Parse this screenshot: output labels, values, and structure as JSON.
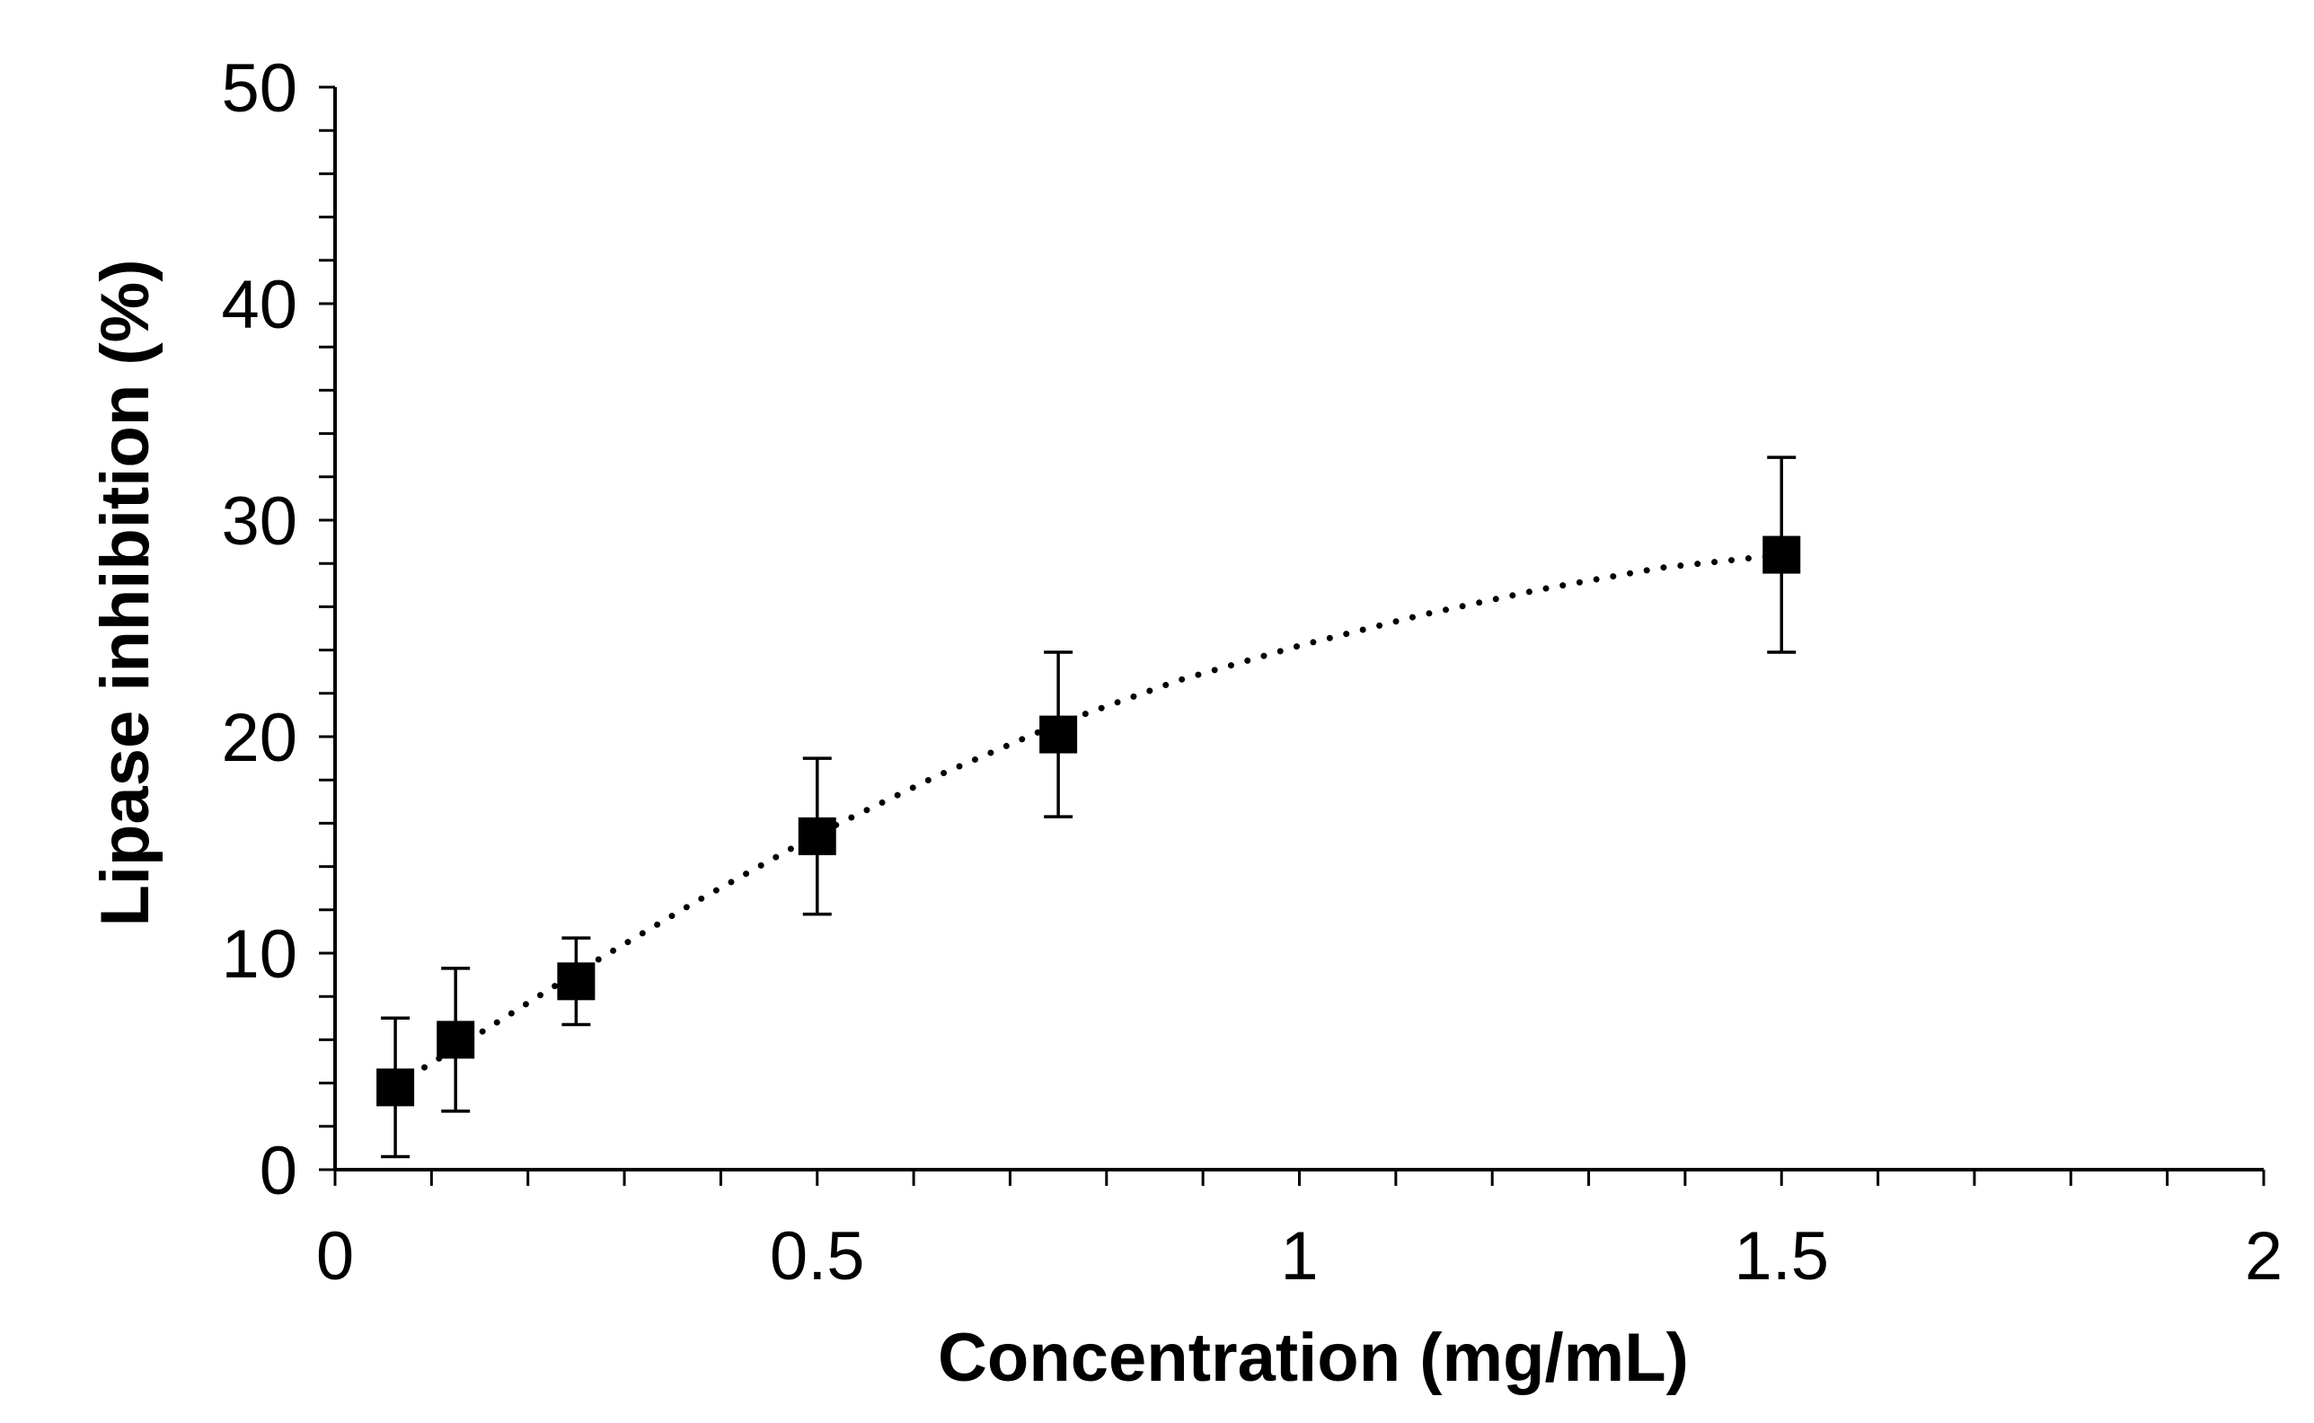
{
  "chart_data": {
    "type": "scatter",
    "title": "",
    "xlabel": "Concentration (mg/mL)",
    "ylabel": "Lipase inhibition (%)",
    "xlim": [
      0,
      2
    ],
    "ylim": [
      0,
      50
    ],
    "x_major_ticks": [
      0,
      0.5,
      1,
      1.5,
      2
    ],
    "x_tick_labels": [
      "0",
      "0.5",
      "1",
      "1.5",
      "2"
    ],
    "x_minor_step": 0.1,
    "y_major_ticks": [
      0,
      10,
      20,
      30,
      40,
      50
    ],
    "y_tick_labels": [
      "0",
      "10",
      "20",
      "30",
      "40",
      "50"
    ],
    "y_minor_step": 2,
    "grid": false,
    "legend": "none",
    "series": [
      {
        "name": "Lipase inhibition",
        "marker": "square",
        "color": "#000000",
        "x": [
          0.0625,
          0.125,
          0.25,
          0.5,
          0.75,
          1.5
        ],
        "y": [
          3.8,
          6.0,
          8.7,
          15.4,
          20.1,
          28.4
        ],
        "error": [
          3.2,
          3.3,
          2.0,
          3.6,
          3.8,
          4.5
        ]
      }
    ],
    "trendline": {
      "style": "dotted",
      "color": "#000000",
      "x_start": 0.0625,
      "x_end": 1.5,
      "points": [
        [
          0.0625,
          3.9
        ],
        [
          0.125,
          5.6
        ],
        [
          0.25,
          9.1
        ],
        [
          0.375,
          12.4
        ],
        [
          0.5,
          15.5
        ],
        [
          0.625,
          18.2
        ],
        [
          0.75,
          20.6
        ],
        [
          0.875,
          22.6
        ],
        [
          1.0,
          24.2
        ],
        [
          1.125,
          25.6
        ],
        [
          1.25,
          26.8
        ],
        [
          1.375,
          27.8
        ],
        [
          1.5,
          28.4
        ]
      ]
    }
  }
}
